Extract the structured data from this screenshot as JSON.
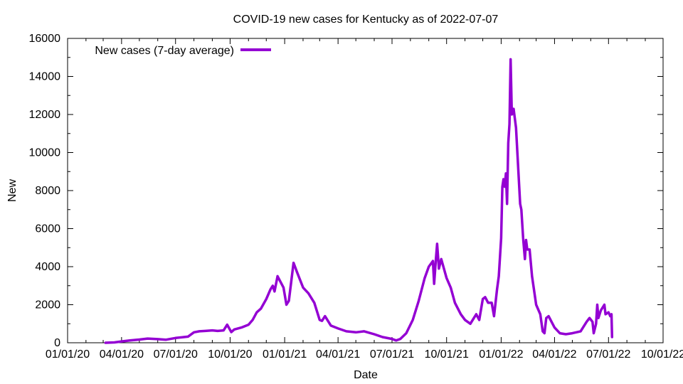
{
  "chart_data": {
    "type": "line",
    "title": "COVID-19 new cases for Kentucky as of 2022-07-07",
    "xlabel": "Date",
    "ylabel": "New",
    "x_ticks": [
      "01/01/20",
      "04/01/20",
      "07/01/20",
      "10/01/20",
      "01/01/21",
      "04/01/21",
      "07/01/21",
      "10/01/21",
      "01/01/22",
      "04/01/22",
      "07/01/22",
      "10/01/22"
    ],
    "y_ticks": [
      "0",
      "2000",
      "4000",
      "6000",
      "8000",
      "10000",
      "12000",
      "14000",
      "16000"
    ],
    "xlim": [
      "2020-01-01",
      "2022-10-01"
    ],
    "ylim": [
      0,
      16000
    ],
    "legend_position": "top-left",
    "grid": false,
    "series": [
      {
        "name": "New cases (7-day average)",
        "color": "#9400d3",
        "points": [
          [
            "2020-03-05",
            0
          ],
          [
            "2020-03-20",
            20
          ],
          [
            "2020-04-01",
            70
          ],
          [
            "2020-04-15",
            120
          ],
          [
            "2020-05-01",
            170
          ],
          [
            "2020-05-15",
            220
          ],
          [
            "2020-06-01",
            190
          ],
          [
            "2020-06-15",
            160
          ],
          [
            "2020-07-01",
            250
          ],
          [
            "2020-07-15",
            300
          ],
          [
            "2020-07-22",
            320
          ],
          [
            "2020-08-01",
            550
          ],
          [
            "2020-08-10",
            600
          ],
          [
            "2020-08-20",
            620
          ],
          [
            "2020-09-01",
            650
          ],
          [
            "2020-09-10",
            620
          ],
          [
            "2020-09-20",
            650
          ],
          [
            "2020-09-26",
            950
          ],
          [
            "2020-10-03",
            560
          ],
          [
            "2020-10-08",
            700
          ],
          [
            "2020-10-20",
            800
          ],
          [
            "2020-11-01",
            950
          ],
          [
            "2020-11-08",
            1200
          ],
          [
            "2020-11-15",
            1600
          ],
          [
            "2020-11-22",
            1800
          ],
          [
            "2020-12-01",
            2300
          ],
          [
            "2020-12-08",
            2800
          ],
          [
            "2020-12-12",
            3000
          ],
          [
            "2020-12-15",
            2700
          ],
          [
            "2020-12-20",
            3500
          ],
          [
            "2020-12-25",
            3200
          ],
          [
            "2020-12-30",
            2900
          ],
          [
            "2021-01-04",
            2000
          ],
          [
            "2021-01-08",
            2200
          ],
          [
            "2021-01-12",
            3200
          ],
          [
            "2021-01-16",
            4200
          ],
          [
            "2021-01-22",
            3700
          ],
          [
            "2021-02-01",
            2900
          ],
          [
            "2021-02-10",
            2600
          ],
          [
            "2021-02-20",
            2100
          ],
          [
            "2021-03-01",
            1200
          ],
          [
            "2021-03-05",
            1150
          ],
          [
            "2021-03-10",
            1400
          ],
          [
            "2021-03-20",
            900
          ],
          [
            "2021-04-01",
            750
          ],
          [
            "2021-04-15",
            600
          ],
          [
            "2021-05-01",
            550
          ],
          [
            "2021-05-15",
            600
          ],
          [
            "2021-06-01",
            450
          ],
          [
            "2021-06-15",
            300
          ],
          [
            "2021-07-01",
            200
          ],
          [
            "2021-07-08",
            120
          ],
          [
            "2021-07-15",
            200
          ],
          [
            "2021-07-25",
            500
          ],
          [
            "2021-08-05",
            1200
          ],
          [
            "2021-08-15",
            2200
          ],
          [
            "2021-08-25",
            3400
          ],
          [
            "2021-09-01",
            4000
          ],
          [
            "2021-09-08",
            4300
          ],
          [
            "2021-09-10",
            3100
          ],
          [
            "2021-09-13",
            4400
          ],
          [
            "2021-09-15",
            5200
          ],
          [
            "2021-09-18",
            3900
          ],
          [
            "2021-09-22",
            4400
          ],
          [
            "2021-10-01",
            3400
          ],
          [
            "2021-10-08",
            2900
          ],
          [
            "2021-10-15",
            2100
          ],
          [
            "2021-10-25",
            1500
          ],
          [
            "2021-11-01",
            1200
          ],
          [
            "2021-11-10",
            1000
          ],
          [
            "2021-11-16",
            1300
          ],
          [
            "2021-11-20",
            1500
          ],
          [
            "2021-11-25",
            1200
          ],
          [
            "2021-12-01",
            2300
          ],
          [
            "2021-12-05",
            2400
          ],
          [
            "2021-12-10",
            2100
          ],
          [
            "2021-12-16",
            2100
          ],
          [
            "2021-12-20",
            1400
          ],
          [
            "2021-12-25",
            2800
          ],
          [
            "2021-12-28",
            3500
          ],
          [
            "2022-01-01",
            5500
          ],
          [
            "2022-01-03",
            8200
          ],
          [
            "2022-01-05",
            8600
          ],
          [
            "2022-01-07",
            8200
          ],
          [
            "2022-01-09",
            8900
          ],
          [
            "2022-01-11",
            7300
          ],
          [
            "2022-01-13",
            10500
          ],
          [
            "2022-01-15",
            11500
          ],
          [
            "2022-01-17",
            14900
          ],
          [
            "2022-01-19",
            12000
          ],
          [
            "2022-01-22",
            12300
          ],
          [
            "2022-01-26",
            11300
          ],
          [
            "2022-02-02",
            7300
          ],
          [
            "2022-02-04",
            7000
          ],
          [
            "2022-02-07",
            5500
          ],
          [
            "2022-02-10",
            4400
          ],
          [
            "2022-02-12",
            5400
          ],
          [
            "2022-02-14",
            4900
          ],
          [
            "2022-02-18",
            4900
          ],
          [
            "2022-02-22",
            3500
          ],
          [
            "2022-03-01",
            2000
          ],
          [
            "2022-03-08",
            1500
          ],
          [
            "2022-03-12",
            600
          ],
          [
            "2022-03-15",
            500
          ],
          [
            "2022-03-18",
            1300
          ],
          [
            "2022-03-22",
            1400
          ],
          [
            "2022-04-01",
            800
          ],
          [
            "2022-04-10",
            500
          ],
          [
            "2022-04-20",
            450
          ],
          [
            "2022-05-01",
            500
          ],
          [
            "2022-05-15",
            600
          ],
          [
            "2022-05-25",
            1100
          ],
          [
            "2022-05-30",
            1300
          ],
          [
            "2022-06-04",
            1100
          ],
          [
            "2022-06-06",
            500
          ],
          [
            "2022-06-10",
            1000
          ],
          [
            "2022-06-12",
            2000
          ],
          [
            "2022-06-14",
            1300
          ],
          [
            "2022-06-18",
            1700
          ],
          [
            "2022-06-24",
            2000
          ],
          [
            "2022-06-26",
            1500
          ],
          [
            "2022-07-01",
            1600
          ],
          [
            "2022-07-04",
            1400
          ],
          [
            "2022-07-06",
            1500
          ],
          [
            "2022-07-07",
            300
          ]
        ]
      }
    ]
  }
}
